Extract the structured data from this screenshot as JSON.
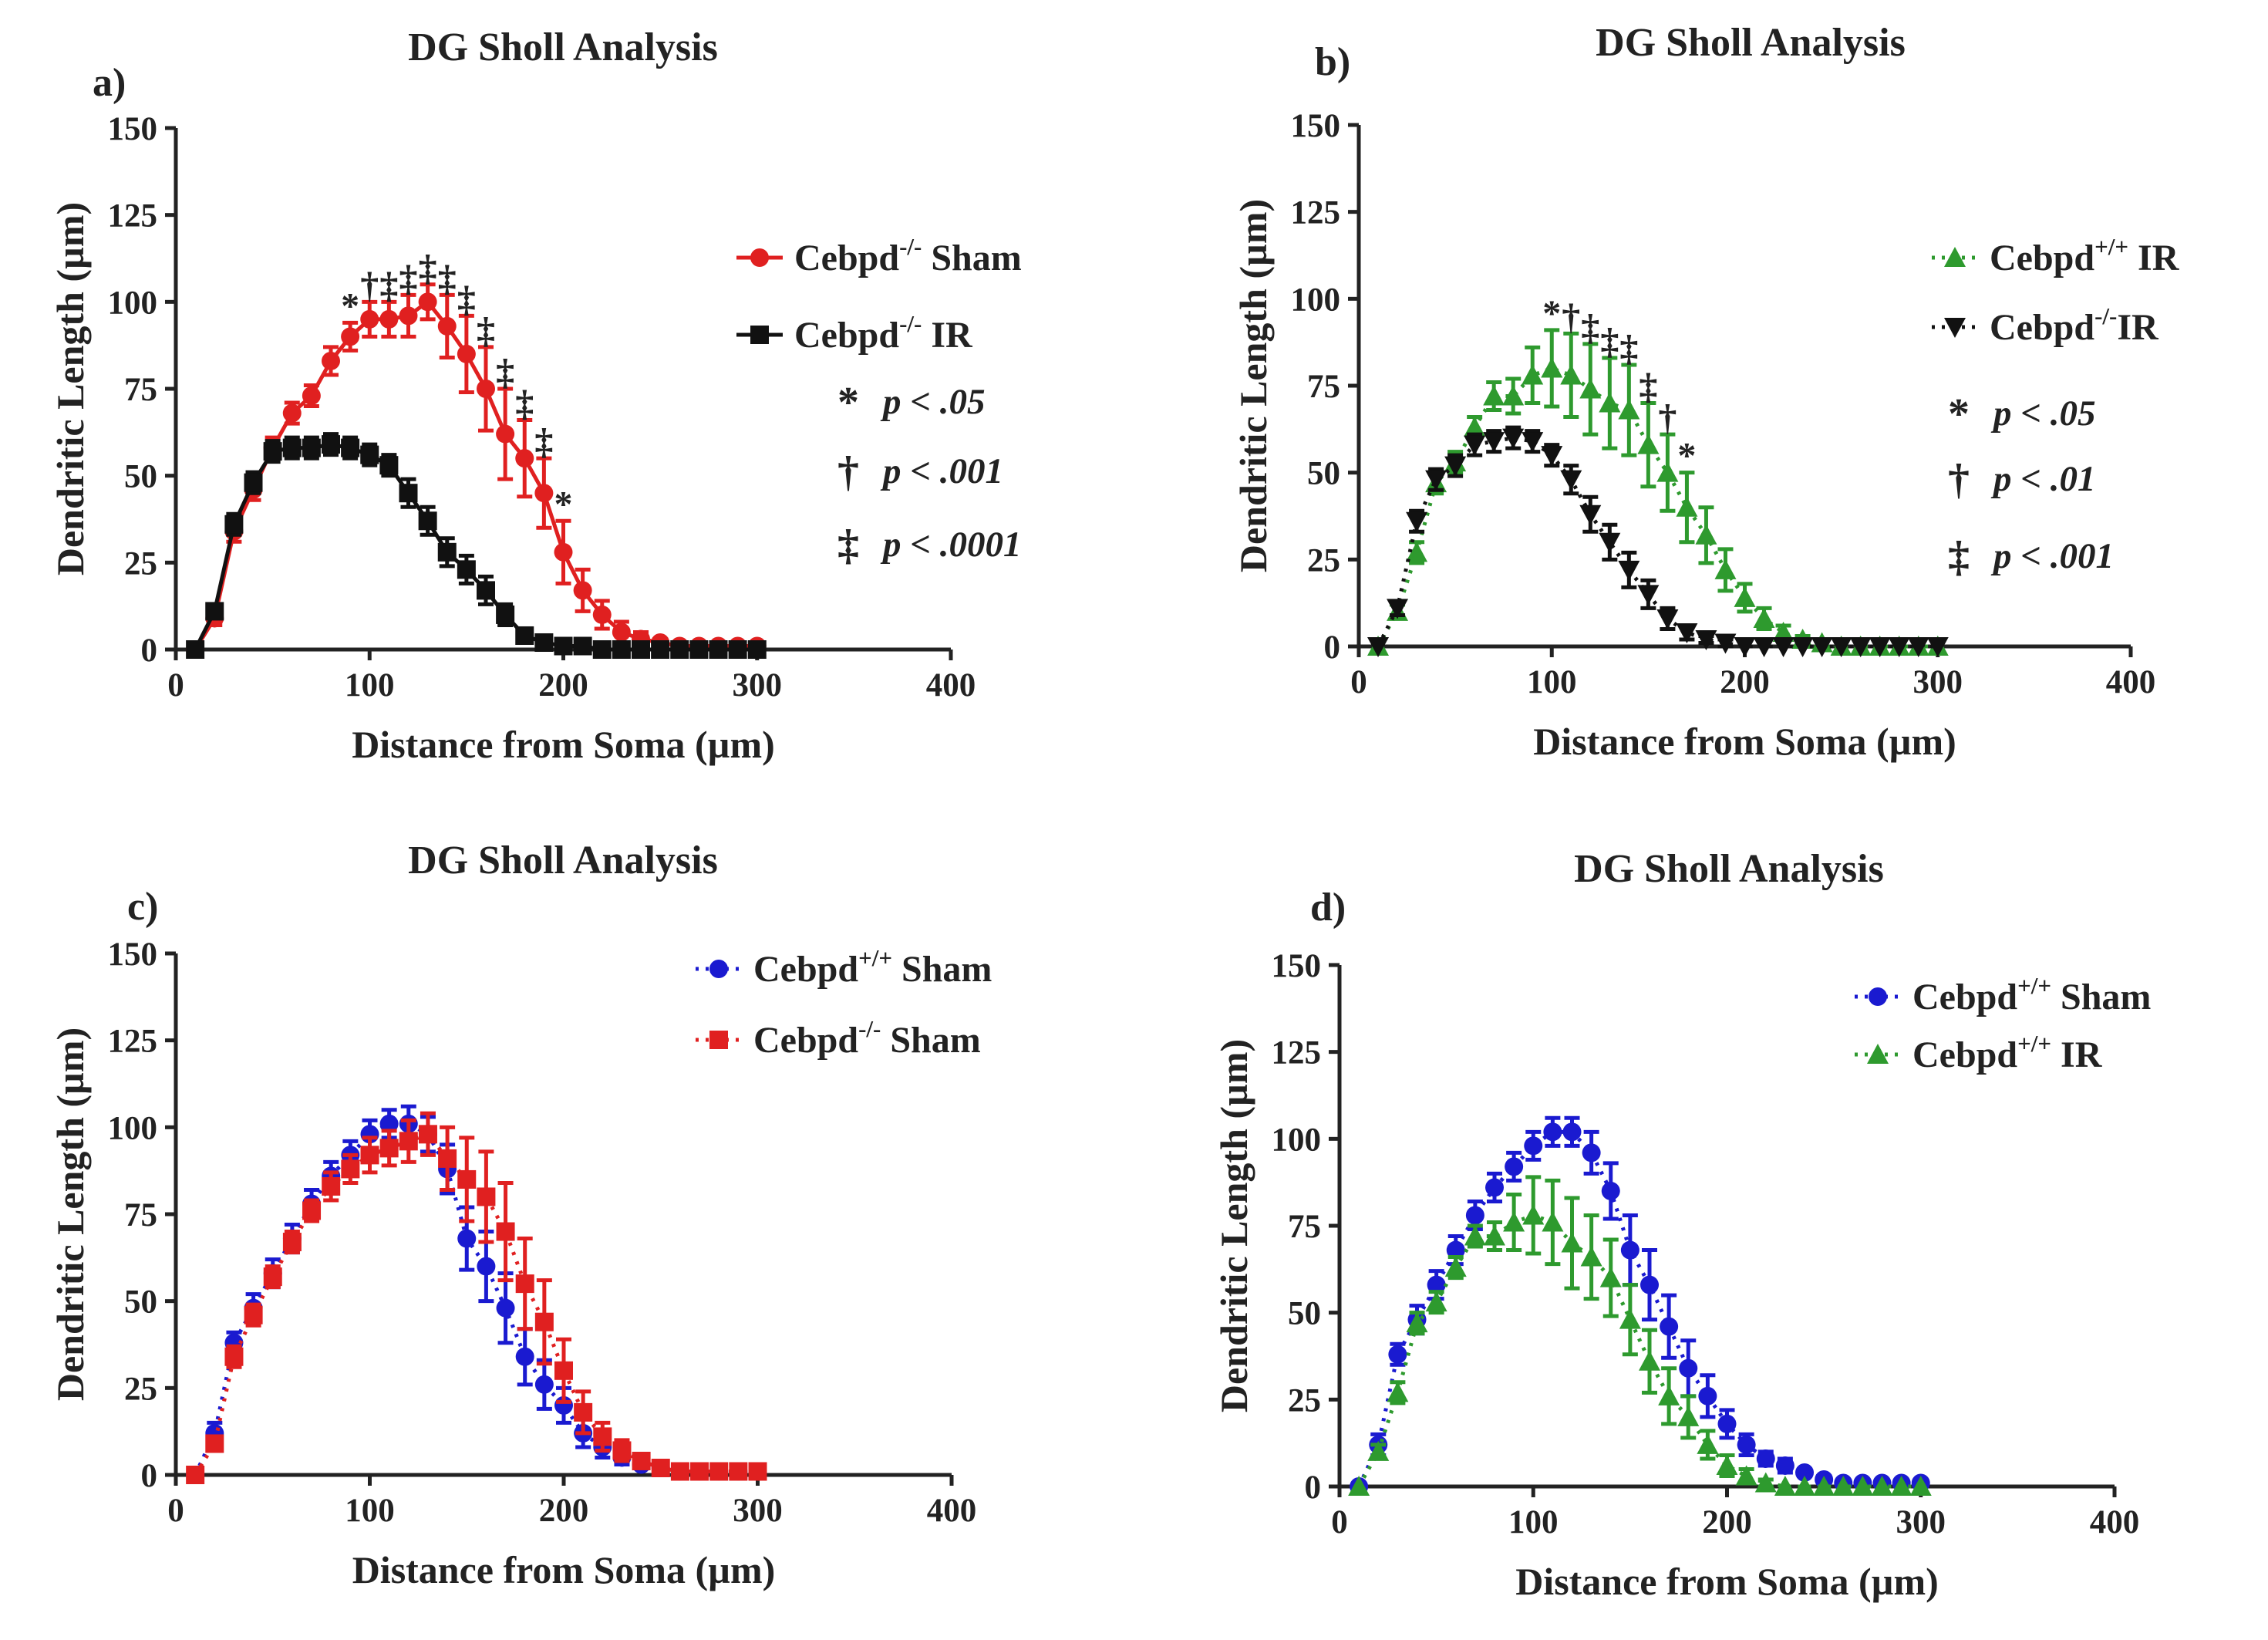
{
  "figure": {
    "xticks": [
      0,
      100,
      200,
      300,
      400
    ],
    "yticks": [
      0,
      25,
      50,
      75,
      100,
      125,
      150
    ],
    "xlim": [
      0,
      400
    ],
    "ylim": [
      0,
      150
    ],
    "xlabel": "Distance from Soma (µm)",
    "ylabel": "Dendritic Length (µm)"
  },
  "chart_data": [
    {
      "type": "line",
      "panel": "a)",
      "title": "DG Sholl Analysis",
      "xlabel": "Distance from Soma (µm)",
      "ylabel": "Dendritic Length (µm)",
      "xlim": [
        0,
        400
      ],
      "ylim": [
        0,
        150
      ],
      "x": [
        10,
        20,
        30,
        40,
        50,
        60,
        70,
        80,
        90,
        100,
        110,
        120,
        130,
        140,
        150,
        160,
        170,
        180,
        190,
        200,
        210,
        220,
        230,
        240,
        250,
        260,
        270,
        280,
        290,
        300
      ],
      "series": [
        {
          "name": "Cebpd",
          "sup": "-/-",
          "suffix": " Sham",
          "color": "#e02020",
          "marker": "circle",
          "dash": "solid",
          "values": [
            0,
            9,
            34,
            46,
            58,
            68,
            73,
            83,
            90,
            95,
            95,
            96,
            100,
            93,
            85,
            75,
            62,
            55,
            45,
            28,
            17,
            10,
            5,
            3,
            2,
            1,
            1,
            1,
            1,
            1
          ],
          "errors": [
            0,
            2,
            3,
            3,
            3,
            3,
            3,
            4,
            4,
            5,
            5,
            6,
            5,
            9,
            11,
            12,
            13,
            11,
            10,
            9,
            6,
            4,
            3,
            2,
            1,
            1,
            1,
            0,
            0,
            0
          ]
        },
        {
          "name": "Cebpd",
          "sup": "-/-",
          "suffix": " IR",
          "color": "#111111",
          "marker": "square",
          "dash": "solid",
          "values": [
            0,
            11,
            36,
            48,
            57,
            58,
            58,
            59,
            58,
            56,
            53,
            45,
            37,
            28,
            23,
            17,
            10,
            4,
            2,
            1,
            1,
            0,
            0,
            0,
            0,
            0,
            0,
            0,
            0,
            0
          ],
          "errors": [
            0,
            2,
            3,
            3,
            3,
            3,
            3,
            3,
            3,
            3,
            3,
            4,
            4,
            4,
            4,
            4,
            3,
            2,
            1,
            1,
            0,
            0,
            0,
            0,
            0,
            0,
            0,
            0,
            0,
            0
          ]
        }
      ],
      "annotations": [
        {
          "x": 90,
          "symbol": "*"
        },
        {
          "x": 100,
          "symbol": "†"
        },
        {
          "x": 110,
          "symbol": "‡"
        },
        {
          "x": 120,
          "symbol": "‡"
        },
        {
          "x": 130,
          "symbol": "‡"
        },
        {
          "x": 140,
          "symbol": "‡"
        },
        {
          "x": 150,
          "symbol": "‡"
        },
        {
          "x": 160,
          "symbol": "‡"
        },
        {
          "x": 170,
          "symbol": "‡"
        },
        {
          "x": 180,
          "symbol": "‡"
        },
        {
          "x": 190,
          "symbol": "‡"
        },
        {
          "x": 200,
          "symbol": "*"
        }
      ],
      "significance": [
        {
          "symbol": "*",
          "text": "p < .05"
        },
        {
          "symbol": "†",
          "text": "p < .001"
        },
        {
          "symbol": "‡",
          "text": "p < .0001"
        }
      ]
    },
    {
      "type": "line",
      "panel": "b)",
      "title": "DG  Sholl Analysis",
      "xlabel": "Distance from Soma (µm)",
      "ylabel": "Dendritic Length (µm)",
      "xlim": [
        0,
        400
      ],
      "ylim": [
        0,
        150
      ],
      "x": [
        10,
        20,
        30,
        40,
        50,
        60,
        70,
        80,
        90,
        100,
        110,
        120,
        130,
        140,
        150,
        160,
        170,
        180,
        190,
        200,
        210,
        220,
        230,
        240,
        250,
        260,
        270,
        280,
        290,
        300
      ],
      "series": [
        {
          "name": "Cebpd",
          "sup": "+/+",
          "suffix": " IR",
          "color": "#2e9a2e",
          "marker": "triangle-up",
          "dash": "dotted",
          "values": [
            0,
            10,
            27,
            47,
            53,
            63,
            72,
            72,
            78,
            80,
            78,
            74,
            70,
            68,
            58,
            50,
            40,
            32,
            22,
            14,
            8,
            4,
            2,
            1,
            0,
            0,
            0,
            0,
            0,
            0
          ],
          "errors": [
            0,
            2,
            3,
            3,
            3,
            3,
            4,
            5,
            8,
            11,
            12,
            13,
            13,
            13,
            12,
            11,
            10,
            8,
            6,
            4,
            3,
            2,
            1,
            1,
            0,
            0,
            0,
            0,
            0,
            0
          ]
        },
        {
          "name": "Cebpd",
          "sup": "-/-",
          "suffix": "IR",
          "color": "#111111",
          "marker": "triangle-down",
          "dash": "dotted",
          "values": [
            0,
            11,
            36,
            48,
            52,
            58,
            59,
            60,
            59,
            55,
            48,
            38,
            30,
            22,
            15,
            8,
            4,
            2,
            1,
            0,
            0,
            0,
            0,
            0,
            0,
            0,
            0,
            0,
            0,
            0
          ],
          "errors": [
            0,
            2,
            3,
            3,
            3,
            3,
            3,
            3,
            3,
            3,
            4,
            5,
            5,
            5,
            4,
            3,
            2,
            1,
            1,
            0,
            0,
            0,
            0,
            0,
            0,
            0,
            0,
            0,
            0,
            0
          ]
        }
      ],
      "annotations": [
        {
          "x": 100,
          "symbol": "*"
        },
        {
          "x": 110,
          "symbol": "†"
        },
        {
          "x": 120,
          "symbol": "‡"
        },
        {
          "x": 130,
          "symbol": "‡"
        },
        {
          "x": 140,
          "symbol": "‡"
        },
        {
          "x": 150,
          "symbol": "‡"
        },
        {
          "x": 160,
          "symbol": "†"
        },
        {
          "x": 170,
          "symbol": "*"
        }
      ],
      "significance": [
        {
          "symbol": "*",
          "text": "p < .05"
        },
        {
          "symbol": "†",
          "text": "p < .01"
        },
        {
          "symbol": "‡",
          "text": "p < .001"
        }
      ]
    },
    {
      "type": "line",
      "panel": "c)",
      "title": "DG Sholl Analysis",
      "xlabel": "Distance from Soma (µm)",
      "ylabel": "Dendritic Length (µm)",
      "xlim": [
        0,
        400
      ],
      "ylim": [
        0,
        150
      ],
      "x": [
        10,
        20,
        30,
        40,
        50,
        60,
        70,
        80,
        90,
        100,
        110,
        120,
        130,
        140,
        150,
        160,
        170,
        180,
        190,
        200,
        210,
        220,
        230,
        240,
        250,
        260,
        270,
        280,
        290,
        300
      ],
      "series": [
        {
          "name": "Cebpd",
          "sup": "+/+",
          "suffix": " Sham",
          "color": "#1a1ad0",
          "marker": "circle",
          "dash": "dotted",
          "values": [
            0,
            12,
            38,
            48,
            58,
            68,
            78,
            86,
            92,
            98,
            101,
            101,
            98,
            88,
            68,
            60,
            48,
            34,
            26,
            20,
            12,
            8,
            5,
            3,
            2,
            1,
            1,
            1,
            1,
            1
          ],
          "errors": [
            0,
            3,
            3,
            4,
            4,
            4,
            4,
            4,
            4,
            4,
            4,
            5,
            5,
            7,
            9,
            10,
            10,
            8,
            7,
            5,
            4,
            3,
            2,
            1,
            1,
            0,
            0,
            0,
            0,
            0
          ]
        },
        {
          "name": "Cebpd",
          "sup": "-/-",
          "suffix": " Sham",
          "color": "#e02020",
          "marker": "square",
          "dash": "dotted",
          "values": [
            0,
            9,
            34,
            46,
            57,
            67,
            76,
            83,
            88,
            92,
            94,
            96,
            98,
            91,
            85,
            80,
            70,
            55,
            44,
            30,
            18,
            11,
            7,
            4,
            2,
            1,
            1,
            1,
            1,
            1
          ],
          "errors": [
            0,
            2,
            3,
            3,
            3,
            3,
            3,
            4,
            4,
            5,
            5,
            6,
            6,
            9,
            12,
            13,
            14,
            13,
            12,
            9,
            6,
            4,
            3,
            2,
            1,
            1,
            0,
            0,
            0,
            0
          ]
        }
      ]
    },
    {
      "type": "line",
      "panel": "d)",
      "title": "DG Sholl Analysis",
      "xlabel": "Distance from Soma (µm)",
      "ylabel": "Dendritic Length (µm)",
      "xlim": [
        0,
        400
      ],
      "ylim": [
        0,
        150
      ],
      "x": [
        10,
        20,
        30,
        40,
        50,
        60,
        70,
        80,
        90,
        100,
        110,
        120,
        130,
        140,
        150,
        160,
        170,
        180,
        190,
        200,
        210,
        220,
        230,
        240,
        250,
        260,
        270,
        280,
        290,
        300
      ],
      "series": [
        {
          "name": "Cebpd",
          "sup": "+/+",
          "suffix": " Sham",
          "color": "#1a1ad0",
          "marker": "circle",
          "dash": "dotted",
          "values": [
            0,
            12,
            38,
            48,
            58,
            68,
            78,
            86,
            92,
            98,
            102,
            102,
            96,
            85,
            68,
            58,
            46,
            34,
            26,
            18,
            12,
            8,
            6,
            4,
            2,
            1,
            1,
            1,
            1,
            1
          ],
          "errors": [
            0,
            3,
            3,
            4,
            4,
            4,
            4,
            4,
            4,
            4,
            4,
            4,
            6,
            8,
            10,
            10,
            9,
            8,
            6,
            4,
            3,
            2,
            2,
            1,
            1,
            0,
            0,
            0,
            0,
            0
          ]
        },
        {
          "name": "Cebpd",
          "sup": "+/+",
          "suffix": " IR",
          "color": "#2e9a2e",
          "marker": "triangle-up",
          "dash": "dotted",
          "values": [
            0,
            10,
            27,
            47,
            53,
            63,
            72,
            72,
            76,
            78,
            76,
            70,
            66,
            60,
            48,
            36,
            26,
            20,
            12,
            6,
            3,
            1,
            0,
            0,
            0,
            0,
            0,
            0,
            0,
            0
          ],
          "errors": [
            0,
            2,
            3,
            3,
            3,
            3,
            3,
            4,
            8,
            11,
            12,
            13,
            12,
            11,
            10,
            9,
            8,
            6,
            4,
            3,
            2,
            1,
            0,
            0,
            0,
            0,
            0,
            0,
            0,
            0
          ]
        }
      ]
    }
  ]
}
